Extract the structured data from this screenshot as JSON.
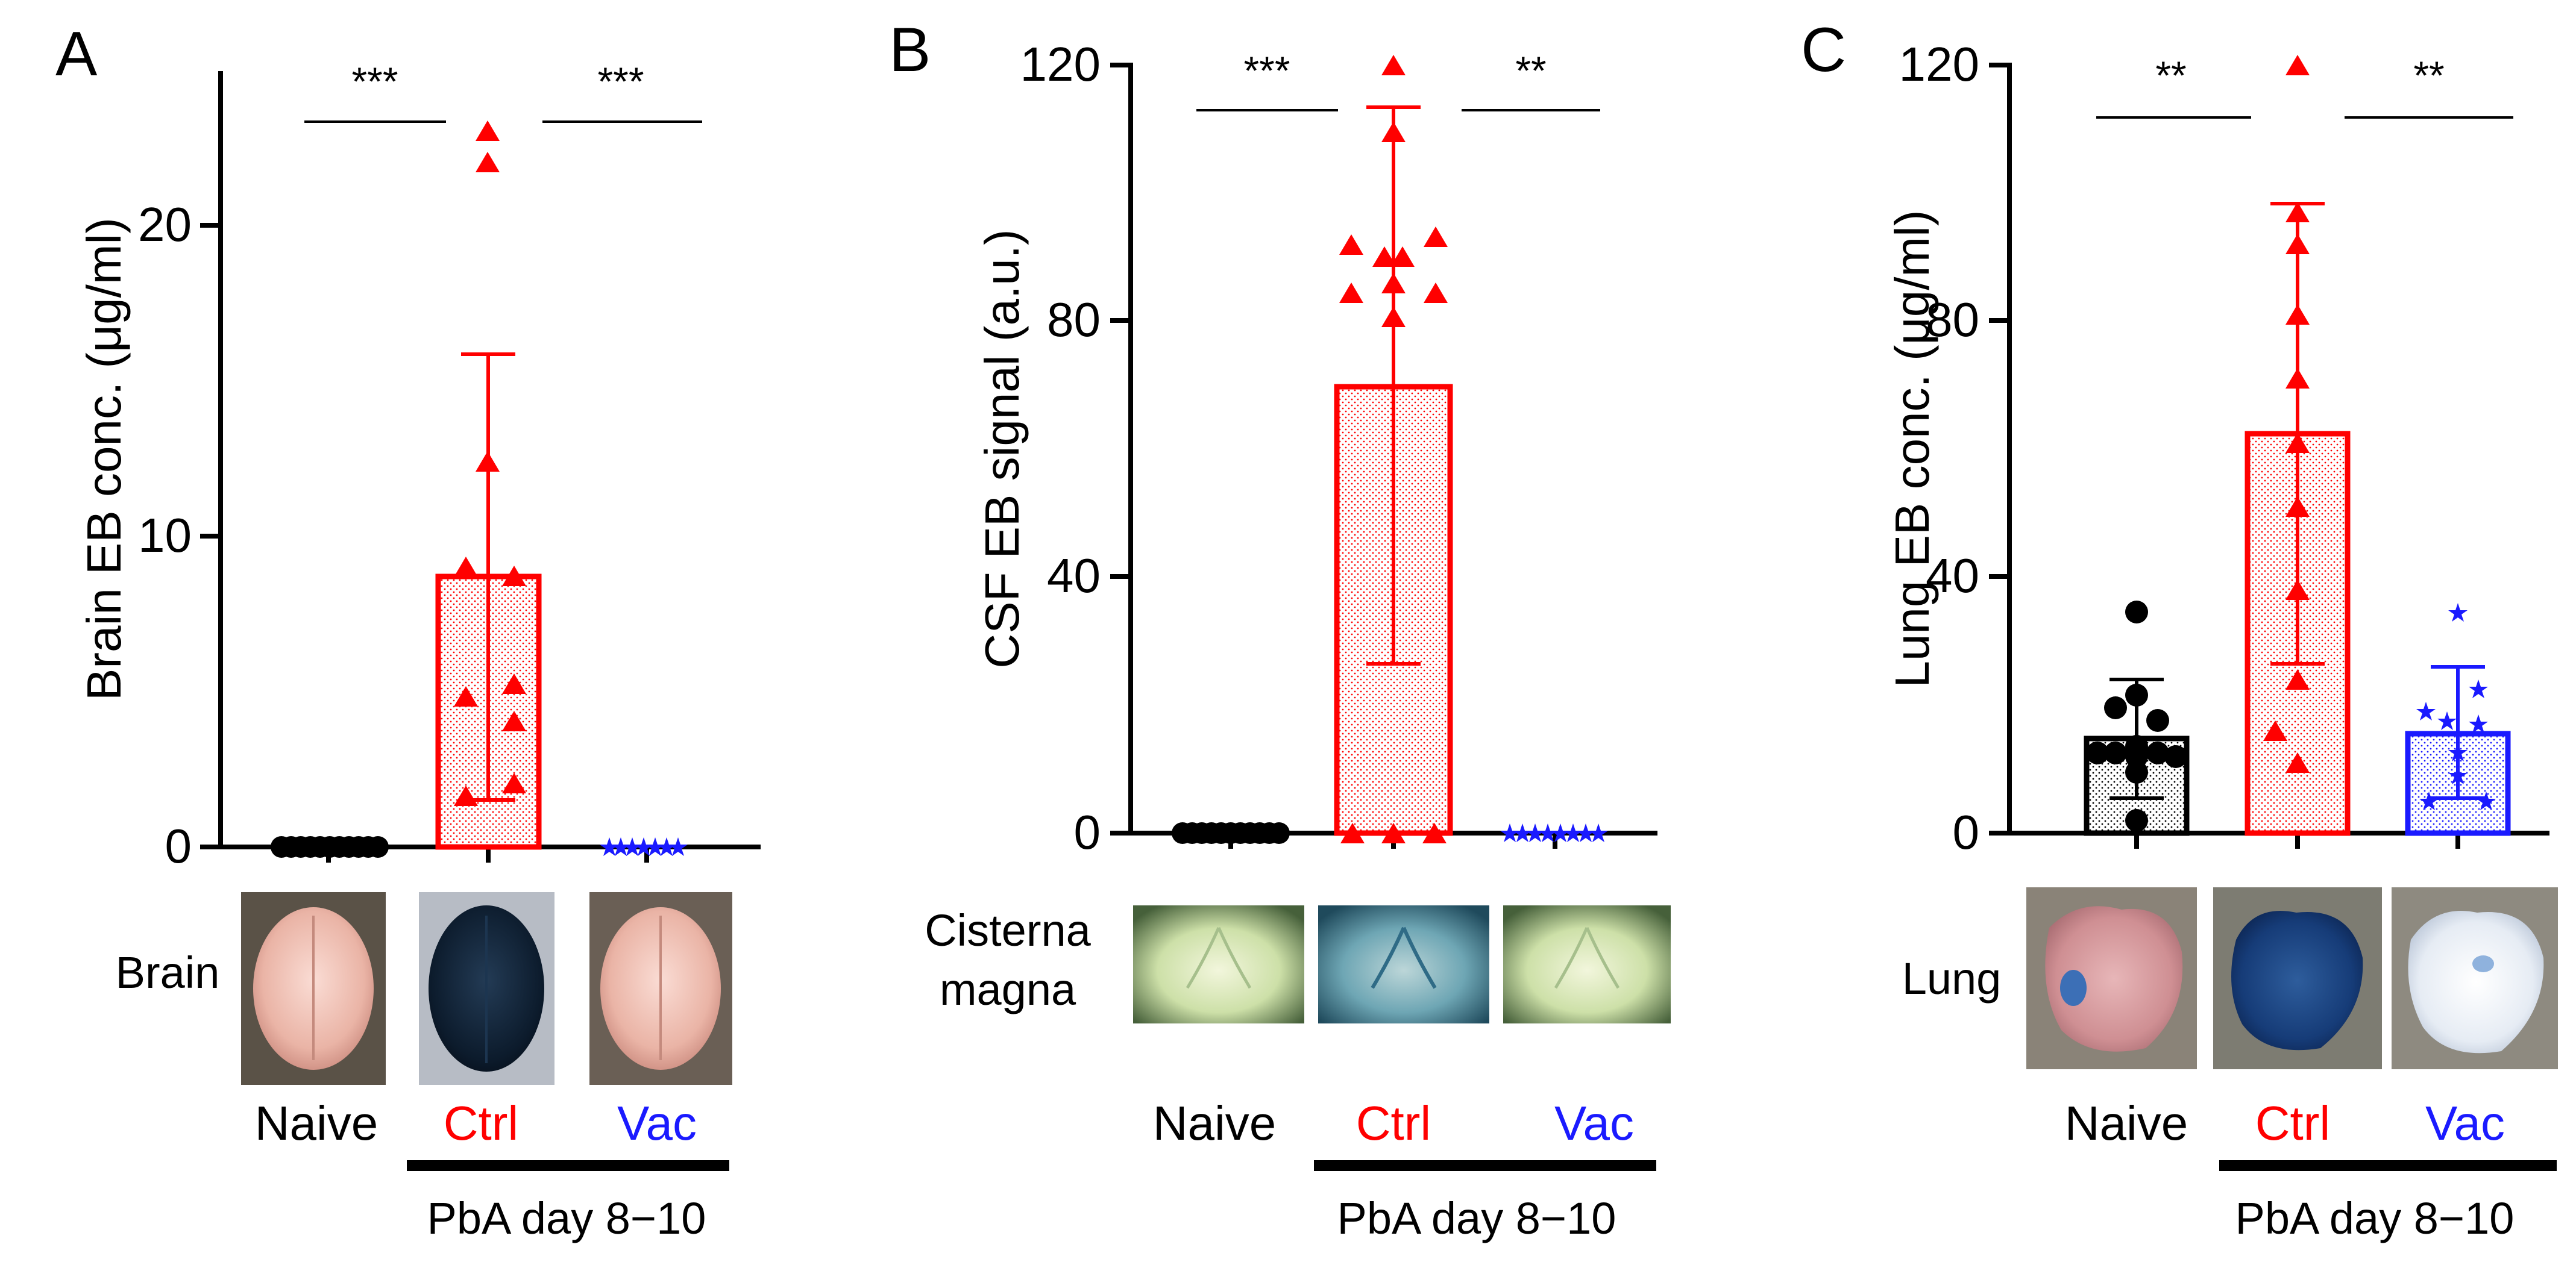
{
  "figure": {
    "treatment_label": "PbA day 8−10",
    "colors": {
      "naive": "#000000",
      "ctrl": "#ff0000",
      "vac": "#1a1aff"
    }
  },
  "chart_data": [
    {
      "panel": "A",
      "type": "bar",
      "ylabel": "Brain EB conc. (μg/ml)",
      "ylim": [
        0,
        25
      ],
      "yticks": [
        0,
        10,
        20
      ],
      "categories": [
        "Naive",
        "Ctrl",
        "Vac"
      ],
      "means": [
        0,
        8.7,
        0
      ],
      "error_upper": [
        null,
        15.9,
        null
      ],
      "error_lower": [
        null,
        1.5,
        null
      ],
      "points": [
        [
          0,
          0,
          0,
          0,
          0,
          0,
          0,
          0,
          0,
          0,
          0
        ],
        [
          22.9,
          22.0,
          12.4,
          9.0,
          8.7,
          5.2,
          4.8,
          4.0,
          2.0,
          1.6
        ],
        [
          0,
          0,
          0,
          0,
          0,
          0,
          0
        ]
      ],
      "markers": [
        "circle",
        "triangle",
        "star"
      ],
      "significance": [
        {
          "from": 0,
          "to": 1,
          "label": "***"
        },
        {
          "from": 1,
          "to": 2,
          "label": "***"
        }
      ],
      "tissue_label": [
        "Brain"
      ],
      "image_labels": [
        "brain-naive",
        "brain-ctrl",
        "brain-vac"
      ]
    },
    {
      "panel": "B",
      "type": "bar",
      "ylabel": "CSF EB signal (a.u.)",
      "ylim": [
        0,
        120
      ],
      "yticks": [
        0,
        40,
        80,
        120
      ],
      "categories": [
        "Naive",
        "Ctrl",
        "Vac"
      ],
      "means": [
        0,
        70,
        0
      ],
      "error_upper": [
        null,
        113.5,
        null
      ],
      "error_lower": [
        null,
        26.5,
        null
      ],
      "points": [
        [
          0,
          0,
          0,
          0,
          0,
          0,
          0,
          0,
          0,
          0,
          0
        ],
        [
          120,
          108,
          93,
          91.5,
          90,
          88,
          84.5,
          84,
          85.5,
          80,
          0,
          0,
          0
        ],
        [
          0,
          0,
          0,
          0,
          0,
          0,
          0,
          0
        ]
      ],
      "markers": [
        "circle",
        "triangle",
        "star"
      ],
      "significance": [
        {
          "from": 0,
          "to": 1,
          "label": "***"
        },
        {
          "from": 1,
          "to": 2,
          "label": "**"
        }
      ],
      "tissue_label": [
        "Cisterna",
        "magna"
      ],
      "image_labels": [
        "cisterna-naive",
        "cisterna-ctrl",
        "cisterna-vac"
      ]
    },
    {
      "panel": "C",
      "type": "bar",
      "ylabel": "Lung EB conc. (μg/ml)",
      "ylim": [
        0,
        120
      ],
      "yticks": [
        0,
        40,
        80,
        120
      ],
      "categories": [
        "Naive",
        "Ctrl",
        "Vac"
      ],
      "means": [
        14.8,
        62.5,
        15.5
      ],
      "error_upper": [
        24,
        98.5,
        26
      ],
      "error_lower": [
        5.5,
        26.5,
        5.5
      ],
      "points": [
        [
          34.5,
          21.5,
          19.5,
          17.5,
          13.5,
          12.5,
          12.5,
          12.5,
          12,
          12,
          9.5,
          2
        ],
        [
          120,
          97,
          92,
          81,
          71,
          61,
          51,
          38,
          24,
          16,
          11
        ],
        [
          34.5,
          22.5,
          19,
          17.5,
          17,
          12.5,
          9,
          5,
          5
        ]
      ],
      "markers": [
        "circle",
        "triangle",
        "star"
      ],
      "significance": [
        {
          "from": 0,
          "to": 1,
          "label": "**"
        },
        {
          "from": 1,
          "to": 2,
          "label": "**"
        }
      ],
      "tissue_label": [
        "Lung"
      ],
      "image_labels": [
        "lung-naive",
        "lung-ctrl",
        "lung-vac"
      ]
    }
  ]
}
